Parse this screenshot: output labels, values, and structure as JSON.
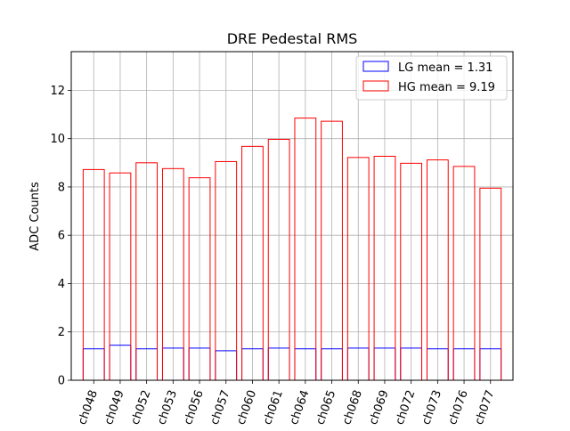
{
  "chart_data": {
    "type": "bar",
    "title": "DRE Pedestal RMS",
    "xlabel": "",
    "ylabel": "ADC Counts",
    "ylim": [
      0,
      13.6
    ],
    "yticks": [
      0,
      2,
      4,
      6,
      8,
      10,
      12
    ],
    "grid": true,
    "legend_position": "top-right",
    "categories": [
      "ch048",
      "ch049",
      "ch052",
      "ch053",
      "ch056",
      "ch057",
      "ch060",
      "ch061",
      "ch064",
      "ch065",
      "ch068",
      "ch069",
      "ch072",
      "ch073",
      "ch076",
      "ch077"
    ],
    "series": [
      {
        "name": "LG mean = 1.31",
        "color": "#0000ff",
        "values": [
          1.3,
          1.45,
          1.3,
          1.33,
          1.33,
          1.22,
          1.3,
          1.33,
          1.3,
          1.3,
          1.33,
          1.33,
          1.33,
          1.3,
          1.3,
          1.3
        ]
      },
      {
        "name": "HG mean = 9.19",
        "color": "#ff0000",
        "values": [
          8.72,
          8.58,
          9.0,
          8.76,
          8.38,
          9.05,
          9.68,
          9.97,
          10.85,
          10.72,
          9.22,
          9.27,
          8.98,
          9.12,
          8.85,
          7.95
        ]
      }
    ]
  }
}
